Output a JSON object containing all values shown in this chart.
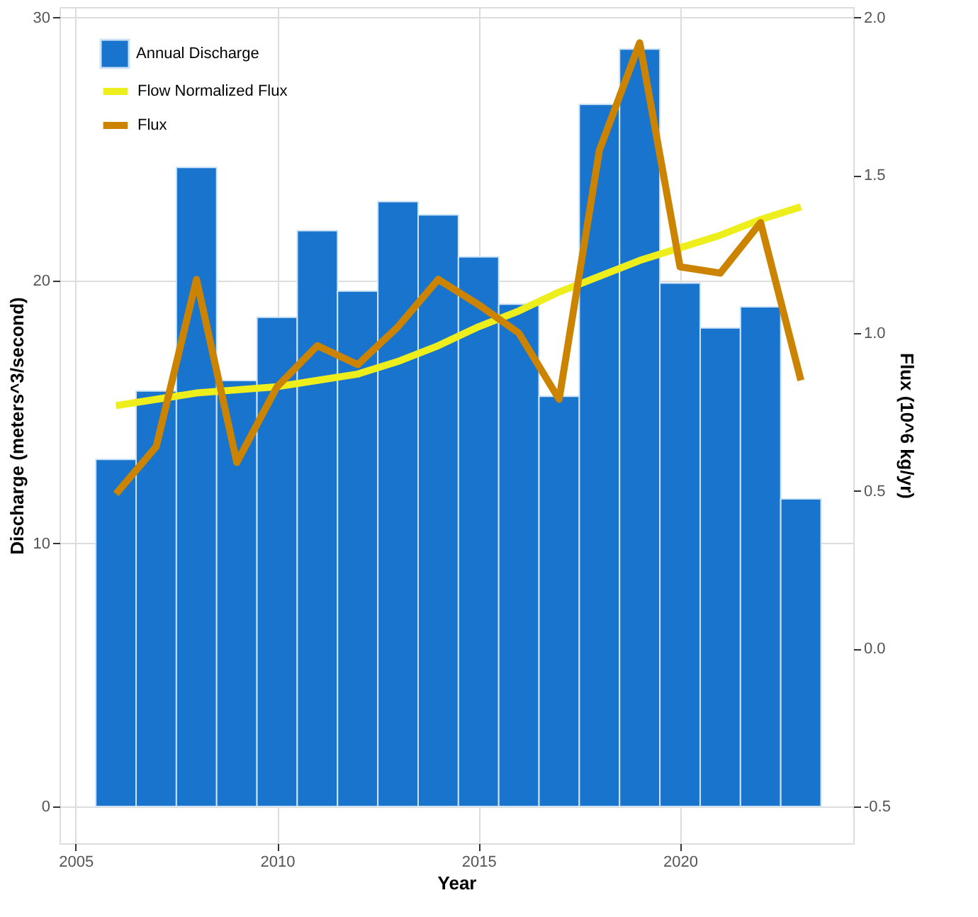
{
  "chart_data": {
    "type": "bar",
    "xlabel": "Year",
    "ylabel": "Discharge (meters^3/second)",
    "y2label": "Flux (10^6 kg/yr)",
    "x": [
      2006,
      2007,
      2008,
      2009,
      2010,
      2011,
      2012,
      2013,
      2014,
      2015,
      2016,
      2017,
      2018,
      2019,
      2020,
      2021,
      2022,
      2023
    ],
    "series": [
      {
        "name": "Annual Discharge",
        "color": "#1874cd",
        "values": [
          13.2,
          15.8,
          24.3,
          16.2,
          18.6,
          21.9,
          19.6,
          23.0,
          22.5,
          20.9,
          19.1,
          15.6,
          26.7,
          28.8,
          19.9,
          18.2,
          19.0,
          11.7
        ]
      },
      {
        "name": "Flow Normalized Flux",
        "type": "line",
        "axis": "y2",
        "color": "#eeee1c",
        "values": [
          0.77,
          0.79,
          0.81,
          0.82,
          0.83,
          0.85,
          0.87,
          0.91,
          0.96,
          1.02,
          1.07,
          1.13,
          1.18,
          1.23,
          1.27,
          1.31,
          1.36,
          1.4
        ]
      },
      {
        "name": "Flux",
        "type": "line",
        "axis": "y2",
        "color": "#cc8400",
        "values": [
          0.49,
          0.64,
          1.17,
          0.59,
          0.83,
          0.96,
          0.9,
          1.02,
          1.17,
          1.09,
          1.0,
          0.79,
          1.58,
          1.92,
          1.21,
          1.19,
          1.35,
          0.85
        ]
      }
    ],
    "xlim": [
      2004.6,
      2024.3
    ],
    "xticks": [
      2005,
      2010,
      2015,
      2020
    ],
    "ylim": [
      -1.4,
      30.4
    ],
    "yticks": [
      0,
      10,
      20,
      30
    ],
    "y2lim": [
      -0.617,
      2.033
    ],
    "y2ticks": [
      {
        "value": -0.5,
        "label": "-0.5"
      },
      {
        "value": 0,
        "label": "0.0"
      },
      {
        "value": 0.5,
        "label": "0.5"
      },
      {
        "value": 1,
        "label": "1.0"
      },
      {
        "value": 1.5,
        "label": "1.5"
      },
      {
        "value": 2,
        "label": "2.0"
      }
    ],
    "grid": true,
    "legend": "top left",
    "line_style": "solid",
    "marker": "none"
  }
}
